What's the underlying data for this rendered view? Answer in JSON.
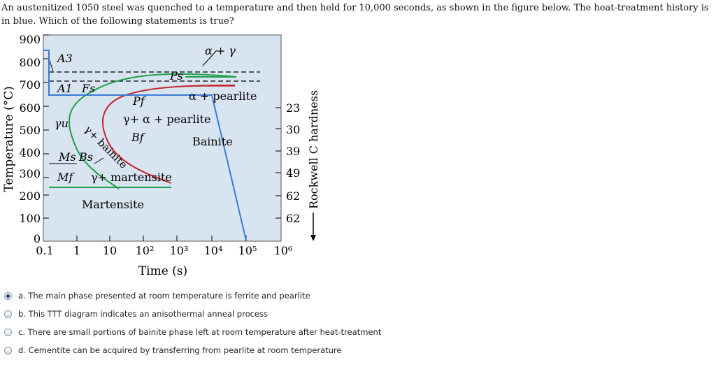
{
  "question": "An austenitized 1050 steel was quenched to a temperature and then held for 10,000 seconds, as shown in the figure below. The heat-treatment history is in blue. Which of the following statements is true?",
  "figure": {
    "y_axis_title": "Temperature (°C)",
    "x_axis_title": "Time (s)",
    "right_axis_title": "Rockwell C hardness",
    "y_ticks": [
      "900",
      "800",
      "700",
      "600",
      "500",
      "400",
      "300",
      "200",
      "100",
      "0"
    ],
    "x_ticks": [
      "0.1",
      "1",
      "10",
      "10²",
      "10³",
      "10⁴",
      "10⁵",
      "10⁶"
    ],
    "hardness_ticks": [
      "23",
      "30",
      "39",
      "49",
      "62",
      "62"
    ],
    "labels": {
      "alpha_gamma": "α + γ",
      "a3": "A3",
      "a1": "A1",
      "fs": "Fs",
      "ps": "Ps",
      "pf": "Pf",
      "alpha_pearlite": "α + pearlite",
      "gamma_u": "γu",
      "gamma_alpha_pearlite": "γ+ α + pearlite",
      "bf": "Bf",
      "gamma_bainite": "γ+ bainite",
      "bainite": "Bainite",
      "ms": "Ms",
      "bs": "Bs",
      "mf": "Mf",
      "gamma_martensite": "γ+ martensite",
      "martensite": "Martensite"
    },
    "colors": {
      "history": "#3a7bd5",
      "start_curve": "#1e9e48",
      "finish_curve": "#c4262e",
      "plot_bg": "#d9e4f1"
    }
  },
  "options": [
    {
      "letter": "a",
      "label": "a. The main phase presented at room temperature is ferrite and pearlite",
      "selected": true
    },
    {
      "letter": "b",
      "label": "b. This TTT diagram indicates an anisothermal anneal process",
      "selected": false
    },
    {
      "letter": "c",
      "label": "c. There are small portions of bainite phase left at room temperature after heat-treatment",
      "selected": false
    },
    {
      "letter": "d",
      "label": "d. Cementite can be acquired by transferring from pearlite at room temperature",
      "selected": false
    }
  ]
}
